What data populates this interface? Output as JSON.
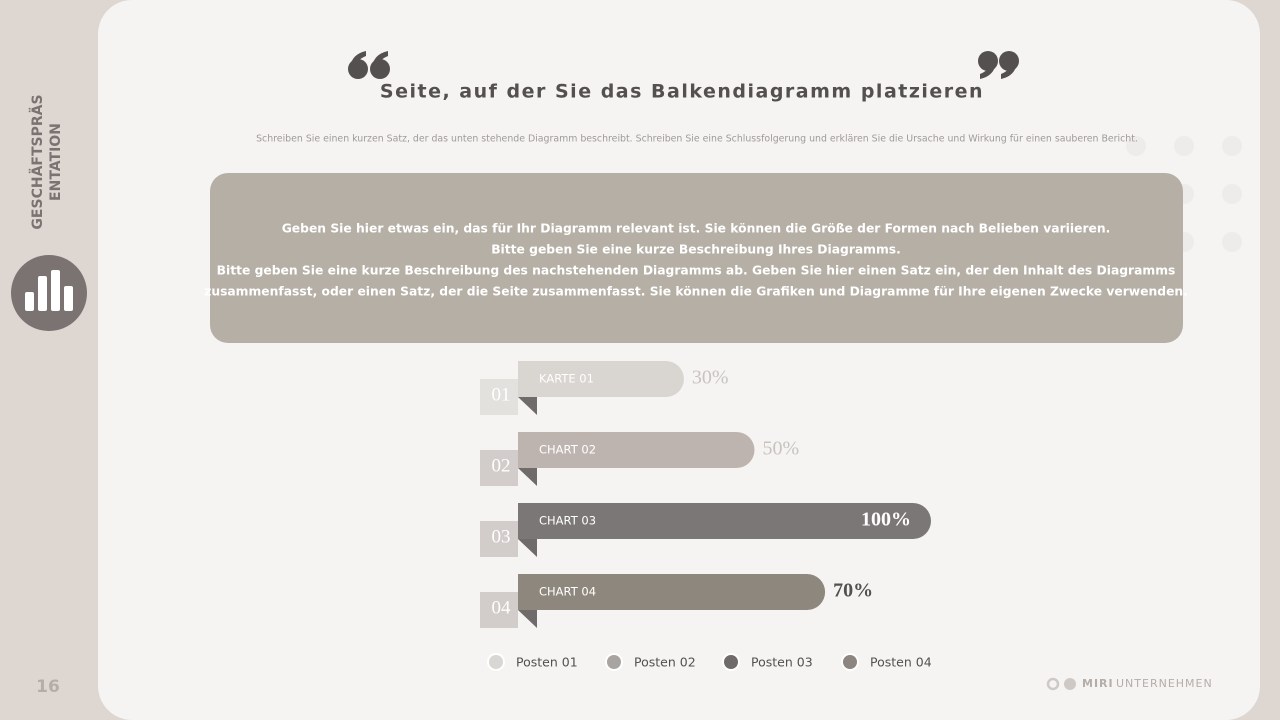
{
  "sidebar": {
    "title_lines": [
      "GESCHÄFTSPRÄS",
      "ENTATION"
    ],
    "page_number": "16"
  },
  "header": {
    "title": "Seite, auf der Sie das Balkendiagramm platzieren",
    "subtitle": "Schreiben Sie einen kurzen Satz, der das unten stehende Diagramm beschreibt. Schreiben Sie eine Schlussfolgerung und erklären Sie die Ursache und Wirkung für einen sauberen Bericht."
  },
  "textbox": {
    "lines": [
      "Geben Sie hier etwas ein, das für Ihr Diagramm relevant ist. Sie können die Größe der Formen nach Belieben variieren.",
      "Bitte geben Sie eine kurze Beschreibung Ihres Diagramms.",
      "Bitte geben Sie eine kurze Beschreibung des nachstehenden Diagramms ab. Geben Sie hier einen Satz ein, der den Inhalt des Diagramms",
      "zusammenfasst, oder einen Satz, der die Seite zusammenfasst. Sie können die Grafiken und Diagramme für Ihre eigenen Zwecke verwenden."
    ]
  },
  "chart_data": {
    "type": "bar",
    "orientation": "horizontal",
    "numbers": [
      "01",
      "02",
      "03",
      "04"
    ],
    "categories": [
      "KARTE 01",
      "CHART 02",
      "CHART 03",
      "CHART 04"
    ],
    "values": [
      30,
      50,
      100,
      70
    ],
    "value_labels": [
      "30%",
      "50%",
      "100%",
      "70%"
    ],
    "colors": [
      "#d9d5d1",
      "#bdb4af",
      "#7b7776",
      "#8e877d"
    ],
    "legend": [
      {
        "name": "Posten 01",
        "color": "#d9d6d3"
      },
      {
        "name": "Posten 02",
        "color": "#a8a4a1"
      },
      {
        "name": "Posten 03",
        "color": "#6f6b6a"
      },
      {
        "name": "Posten 04",
        "color": "#8c8580"
      }
    ]
  },
  "footer": {
    "brand": "MIRI",
    "brand_rest": "UNTERNEHMEN"
  }
}
